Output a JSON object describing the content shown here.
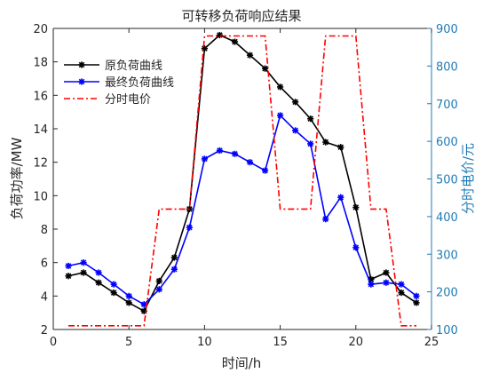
{
  "chart_data": {
    "type": "line",
    "title": "可转移负荷响应结果",
    "xlabel": "时间/h",
    "ylabel_left": "负荷功率/MW",
    "ylabel_right": "分时电价/元",
    "xlim": [
      0,
      25
    ],
    "ylim_left": [
      2,
      20
    ],
    "ylim_right": [
      100,
      900
    ],
    "xticks": [
      0,
      5,
      10,
      15,
      20,
      25
    ],
    "yticks_left": [
      2,
      4,
      6,
      8,
      10,
      12,
      14,
      16,
      18,
      20
    ],
    "yticks_right": [
      100,
      200,
      300,
      400,
      500,
      600,
      700,
      800,
      900
    ],
    "legend_position": "top-left",
    "grid": false,
    "colors": {
      "original": "#000000",
      "final": "#0000ff",
      "price": "#ff0000",
      "right_axis": "#1f7bb6",
      "axis": "#262626"
    },
    "series": [
      {
        "name": "原负荷曲线",
        "axis": "left",
        "x": [
          1,
          2,
          3,
          4,
          5,
          6,
          7,
          8,
          9,
          10,
          11,
          12,
          13,
          14,
          15,
          16,
          17,
          18,
          19,
          20,
          21,
          22,
          23,
          24
        ],
        "values": [
          5.2,
          5.4,
          4.8,
          4.2,
          3.6,
          3.1,
          4.9,
          6.3,
          9.2,
          18.8,
          19.6,
          19.2,
          18.4,
          17.6,
          16.5,
          15.6,
          14.6,
          13.2,
          12.9,
          9.3,
          5.0,
          5.4,
          4.2,
          3.6
        ]
      },
      {
        "name": "最终负荷曲线",
        "axis": "left",
        "x": [
          1,
          2,
          3,
          4,
          5,
          6,
          7,
          8,
          9,
          10,
          11,
          12,
          13,
          14,
          15,
          16,
          17,
          18,
          19,
          20,
          21,
          22,
          23,
          24
        ],
        "values": [
          5.8,
          6.0,
          5.4,
          4.7,
          4.0,
          3.5,
          4.4,
          5.6,
          8.1,
          12.2,
          12.7,
          12.5,
          12.0,
          11.5,
          14.8,
          13.9,
          13.1,
          8.6,
          9.9,
          6.9,
          4.7,
          4.8,
          4.7,
          4.0
        ]
      },
      {
        "name": "分时电价",
        "axis": "right",
        "x": [
          1,
          6,
          7,
          9,
          10,
          14,
          15,
          17,
          18,
          20,
          21,
          22,
          23,
          24
        ],
        "values": [
          110,
          110,
          420,
          420,
          880,
          880,
          420,
          420,
          880,
          880,
          420,
          420,
          110,
          110
        ]
      }
    ]
  }
}
